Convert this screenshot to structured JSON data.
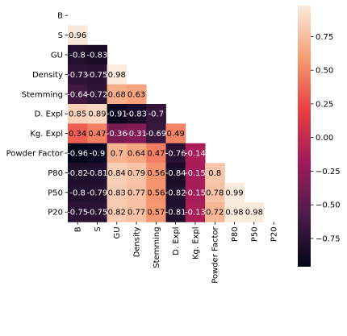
{
  "chart_data": {
    "type": "heatmap",
    "variables": [
      "B",
      "S",
      "GU",
      "Density",
      "Stemming",
      "D. Expl",
      "Kg. Expl",
      "Powder Factor",
      "P80",
      "P50",
      "P20"
    ],
    "mask": "upper-triangle-including-diagonal",
    "matrix": [
      [
        null,
        null,
        null,
        null,
        null,
        null,
        null,
        null,
        null,
        null,
        null
      ],
      [
        0.96,
        null,
        null,
        null,
        null,
        null,
        null,
        null,
        null,
        null,
        null
      ],
      [
        -0.8,
        -0.83,
        null,
        null,
        null,
        null,
        null,
        null,
        null,
        null,
        null
      ],
      [
        -0.73,
        -0.75,
        0.98,
        null,
        null,
        null,
        null,
        null,
        null,
        null,
        null
      ],
      [
        -0.64,
        -0.72,
        0.68,
        0.63,
        null,
        null,
        null,
        null,
        null,
        null,
        null
      ],
      [
        0.85,
        0.89,
        -0.91,
        -0.83,
        -0.7,
        null,
        null,
        null,
        null,
        null,
        null
      ],
      [
        0.34,
        0.47,
        -0.36,
        -0.31,
        -0.69,
        0.49,
        null,
        null,
        null,
        null,
        null
      ],
      [
        -0.96,
        -0.9,
        0.7,
        0.64,
        0.47,
        -0.76,
        -0.14,
        null,
        null,
        null,
        null
      ],
      [
        -0.82,
        -0.81,
        0.84,
        0.79,
        0.56,
        -0.84,
        -0.15,
        0.8,
        null,
        null,
        null
      ],
      [
        -0.8,
        -0.79,
        0.83,
        0.77,
        0.56,
        -0.82,
        -0.15,
        0.78,
        0.99,
        null,
        null
      ],
      [
        -0.75,
        -0.75,
        0.82,
        0.77,
        0.57,
        -0.81,
        -0.13,
        0.72,
        0.98,
        0.98,
        null
      ]
    ],
    "cell_labels": [
      [
        null,
        null,
        null,
        null,
        null,
        null,
        null,
        null,
        null,
        null,
        null
      ],
      [
        "0.96",
        null,
        null,
        null,
        null,
        null,
        null,
        null,
        null,
        null,
        null
      ],
      [
        "-0.8",
        "-0.83",
        null,
        null,
        null,
        null,
        null,
        null,
        null,
        null,
        null
      ],
      [
        "-0.73",
        "-0.75",
        "0.98",
        null,
        null,
        null,
        null,
        null,
        null,
        null,
        null
      ],
      [
        "-0.64",
        "-0.72",
        "0.68",
        "0.63",
        null,
        null,
        null,
        null,
        null,
        null,
        null
      ],
      [
        "0.85",
        "0.89",
        "-0.91",
        "-0.83",
        "-0.7",
        null,
        null,
        null,
        null,
        null,
        null
      ],
      [
        "0.34",
        "0.47",
        "-0.36",
        "-0.31",
        "-0.69",
        "0.49",
        null,
        null,
        null,
        null,
        null
      ],
      [
        "-0.96",
        "-0.9",
        "0.7",
        "0.64",
        "0.47",
        "-0.76",
        "-0.14",
        null,
        null,
        null,
        null
      ],
      [
        "-0.82",
        "-0.81",
        "0.84",
        "0.79",
        "0.56",
        "-0.84",
        "-0.15",
        "0.8",
        null,
        null,
        null
      ],
      [
        "-0.8",
        "-0.79",
        "0.83",
        "0.77",
        "0.56",
        "-0.82",
        "-0.15",
        "0.78",
        "0.99",
        null,
        null
      ],
      [
        "-0.75",
        "-0.75",
        "0.82",
        "0.77",
        "0.57",
        "-0.81",
        "-0.13",
        "0.72",
        "0.98",
        "0.98",
        null
      ]
    ],
    "colormap": "rocket",
    "colormap_stops": [
      "#03051a",
      "#4c1d4b",
      "#a11a5b",
      "#e83f3f",
      "#f69c73",
      "#faebdd"
    ],
    "vmin": -0.96,
    "vmax": 0.98,
    "colorbar": {
      "ticks": [
        0.75,
        0.5,
        0.25,
        0.0,
        -0.25,
        -0.5,
        -0.75
      ],
      "tick_labels": [
        "0.75",
        "0.50",
        "0.25",
        "0.00",
        "−0.25",
        "−0.50",
        "−0.75"
      ]
    },
    "title": "",
    "xlabel": "",
    "ylabel": ""
  }
}
